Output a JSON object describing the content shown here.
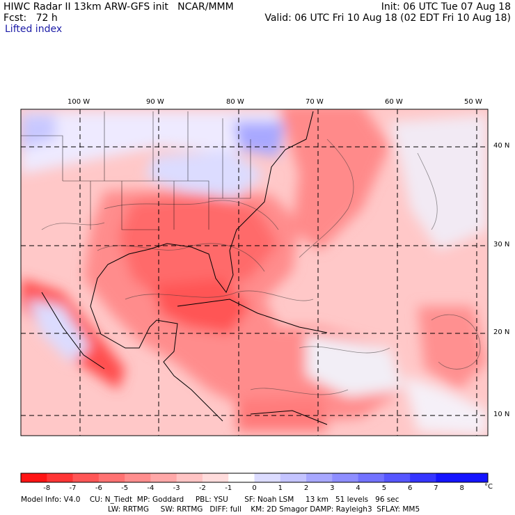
{
  "header": {
    "line1_left": "HIWC Radar II 13km ARW-GFS init   NCAR/MMM",
    "line1_right": "Init: 06 UTC Tue 07 Aug 18",
    "line2_left": "Fcst:   72 h",
    "line2_right": "Valid: 06 UTC Fri 10 Aug 18 (02 EDT Fri 10 Aug 18)",
    "field_name": "Lifted index"
  },
  "axes": {
    "lon_labels": [
      "100 W",
      "90 W",
      "80 W",
      "70 W",
      "60 W",
      "50 W"
    ],
    "lat_labels": [
      "40 N",
      "30 N",
      "20 N",
      "10 N"
    ]
  },
  "colorbar": {
    "unit": "°C",
    "labels": [
      "-8",
      "-7",
      "-6",
      "-5",
      "-4",
      "-3",
      "-2",
      "-1",
      "0",
      "1",
      "2",
      "3",
      "4",
      "5",
      "6",
      "7",
      "8"
    ],
    "colors": [
      "#ff1414",
      "#ff3535",
      "#ff5656",
      "#ff7272",
      "#ff8e8e",
      "#ffa8a8",
      "#ffc4c4",
      "#ffdcdc",
      "#ffffff",
      "#dcdcff",
      "#c4c4ff",
      "#a8a8ff",
      "#8e8eff",
      "#7272ff",
      "#5656ff",
      "#3535ff",
      "#1414ff"
    ]
  },
  "footer": {
    "line1": "Model Info: V4.0    CU: N_Tiedt  MP: Goddard     PBL: YSU       SF: Noah LSM     13 km   51 levels   96 sec",
    "line2": "LW: RRTMG     SW: RRTMG   DIFF: full    KM: 2D Smagor DAMP: Rayleigh3  SFLAY: MM5"
  }
}
